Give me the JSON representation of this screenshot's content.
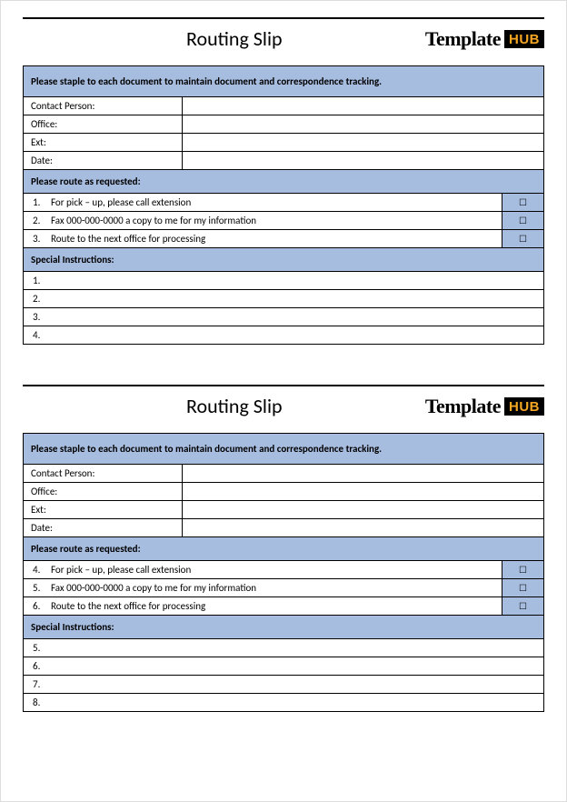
{
  "colors": {
    "header_bg": "#a7bde0",
    "border": "#000000",
    "page_bg": "#ffffff",
    "logo_hub_bg": "#000000",
    "logo_hub_fg": "#f5a623"
  },
  "logo": {
    "template": "Template",
    "hub": "HUB"
  },
  "slips": [
    {
      "title": "Routing Slip",
      "instruction_header": "Please staple to each document to maintain document and correspondence tracking.",
      "contact_fields": [
        {
          "label": "Contact Person:",
          "value": ""
        },
        {
          "label": "Office:",
          "value": ""
        },
        {
          "label": "Ext:",
          "value": ""
        },
        {
          "label": "Date:",
          "value": ""
        }
      ],
      "route_header": "Please route as requested:",
      "route_items": [
        {
          "num": "1.",
          "text": "For pick – up, please call extension",
          "checkbox": "☐"
        },
        {
          "num": "2.",
          "text": "Fax 000-000-0000 a copy to me for my information",
          "checkbox": "☐"
        },
        {
          "num": "3.",
          "text": "Route to the next office for processing",
          "checkbox": "☐"
        }
      ],
      "special_header": "Special Instructions:",
      "special_items": [
        {
          "num": "1."
        },
        {
          "num": "2."
        },
        {
          "num": "3."
        },
        {
          "num": "4."
        }
      ]
    },
    {
      "title": "Routing Slip",
      "instruction_header": "Please staple to each document to maintain document and correspondence tracking.",
      "contact_fields": [
        {
          "label": "Contact Person:",
          "value": ""
        },
        {
          "label": "Office:",
          "value": ""
        },
        {
          "label": "Ext:",
          "value": ""
        },
        {
          "label": "Date:",
          "value": ""
        }
      ],
      "route_header": "Please route as requested:",
      "route_items": [
        {
          "num": "4.",
          "text": "For pick – up, please call extension",
          "checkbox": "☐"
        },
        {
          "num": "5.",
          "text": "Fax 000-000-0000 a copy to me for my information",
          "checkbox": "☐"
        },
        {
          "num": "6.",
          "text": "Route to the next office for processing",
          "checkbox": "☐"
        }
      ],
      "special_header": "Special Instructions:",
      "special_items": [
        {
          "num": "5."
        },
        {
          "num": "6."
        },
        {
          "num": "7."
        },
        {
          "num": "8."
        }
      ]
    }
  ]
}
